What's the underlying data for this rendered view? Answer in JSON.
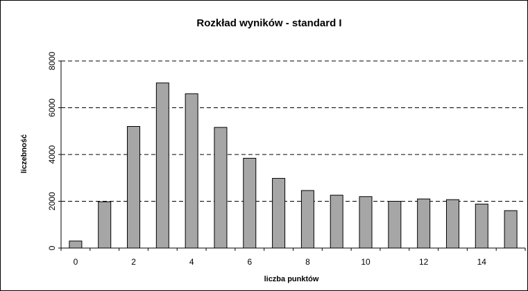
{
  "chart_data": {
    "type": "bar",
    "title": "Rozkład wyników - standard I",
    "xlabel": "liczba punktów",
    "ylabel": "liczebność",
    "categories": [
      0,
      1,
      2,
      3,
      4,
      5,
      6,
      7,
      8,
      9,
      10,
      11,
      12,
      13,
      14,
      15
    ],
    "values": [
      300,
      1980,
      5200,
      7060,
      6600,
      5160,
      3840,
      2980,
      2460,
      2260,
      2200,
      2000,
      2100,
      2070,
      1880,
      1600
    ],
    "x_tick_labels": [
      "0",
      "2",
      "4",
      "6",
      "8",
      "10",
      "12",
      "14"
    ],
    "y_tick_labels": [
      "0",
      "2000",
      "4000",
      "6000",
      "8000"
    ],
    "ylim": [
      0,
      8000
    ],
    "grid": "horizontal dashed",
    "legend": "none",
    "colors": {
      "bar": "#a6a6a6",
      "bar_edge": "#000000",
      "plot_background": "#ffffff"
    }
  }
}
